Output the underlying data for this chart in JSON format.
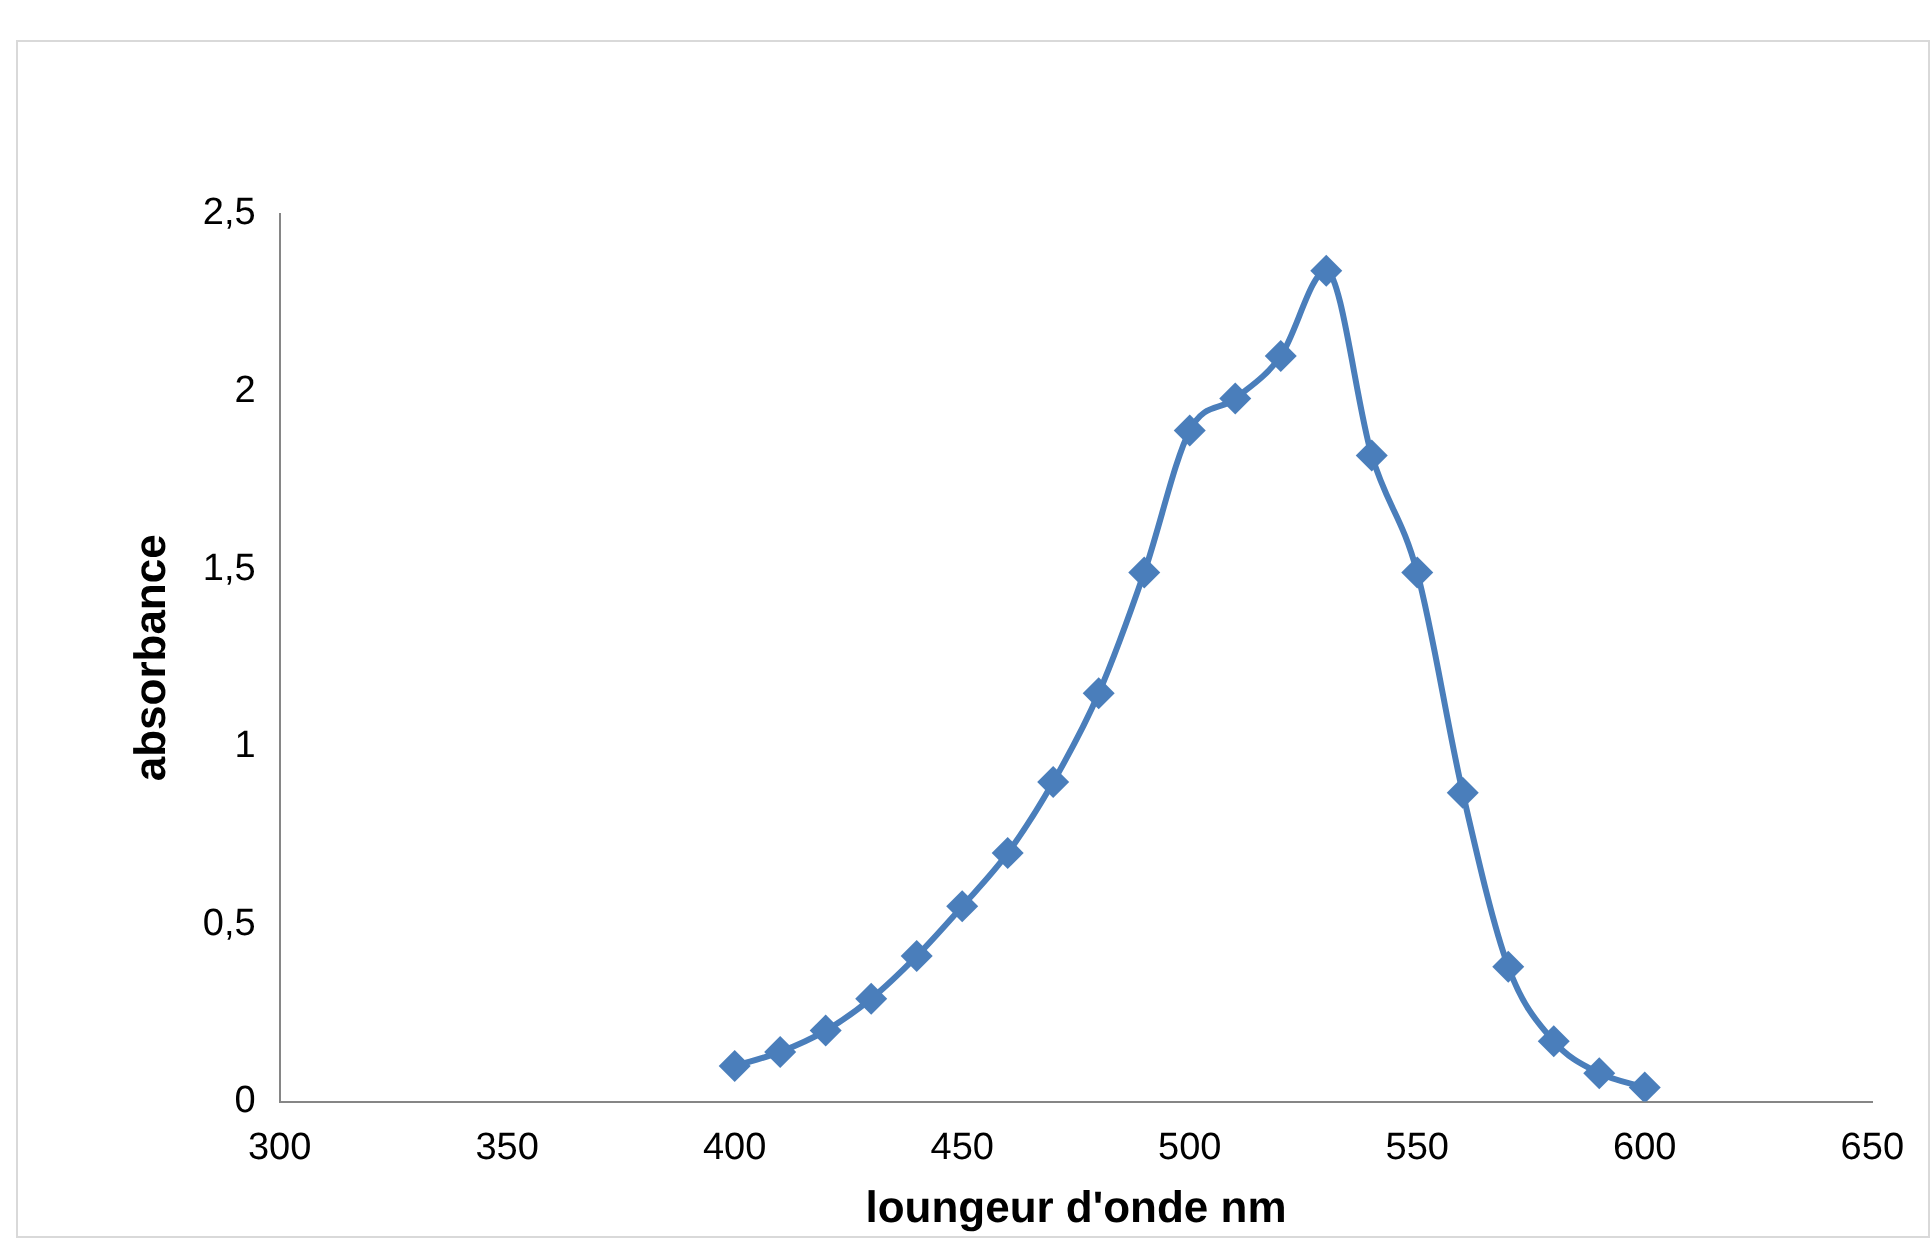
{
  "chart_data": {
    "type": "line",
    "xlabel": "loungeur d'onde nm",
    "ylabel": "absorbance",
    "series": [
      {
        "color": "#4a7ebb",
        "x": [
          400,
          410,
          420,
          430,
          440,
          450,
          460,
          470,
          480,
          490,
          500,
          510,
          520,
          530,
          540,
          550,
          560,
          570,
          580,
          590,
          600
        ],
        "values": [
          0.1,
          0.14,
          0.2,
          0.29,
          0.41,
          0.55,
          0.7,
          0.9,
          1.15,
          1.49,
          1.89,
          1.98,
          2.1,
          2.34,
          1.82,
          1.49,
          0.87,
          0.38,
          0.17,
          0.08,
          0.04
        ]
      }
    ],
    "xlim": [
      300,
      650
    ],
    "xticks": [
      300,
      350,
      400,
      450,
      500,
      550,
      600,
      650
    ],
    "ylim": [
      0,
      2.5
    ],
    "yticks": [
      0,
      {
        "value": 0.5,
        "label": "0,5"
      },
      1,
      {
        "value": 1.5,
        "label": "1,5"
      },
      2,
      {
        "value": 2.5,
        "label": "2,5"
      }
    ],
    "grid": false,
    "legend": false,
    "marker": "diamond",
    "line_style": "solid"
  }
}
